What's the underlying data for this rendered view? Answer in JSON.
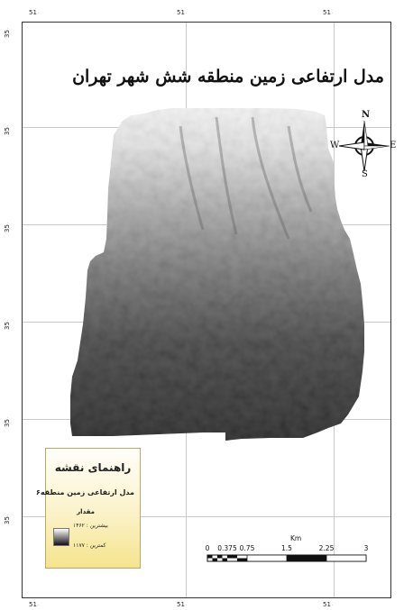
{
  "map": {
    "title": "مدل ارتفاعی زمین منطقه شش شهر تهران",
    "longitude_ticks": [
      "51",
      "51",
      "51"
    ],
    "latitude_ticks": [
      "35",
      "35",
      "35",
      "35",
      "35",
      "35"
    ],
    "tick_suffix": "°",
    "north_arrow": {
      "n": "N",
      "s": "S",
      "e": "E",
      "w": "W"
    },
    "colors": {
      "dem_high": "#ffffff",
      "dem_low": "#111111",
      "legend_bg": "#f5e48d"
    }
  },
  "legend": {
    "title": "راهنمای نقشه",
    "layer_name": "مدل ارتفاعی زمین منطقه۶",
    "value_label": "مقدار",
    "high_label": "بیشترین : ۱۴۶۲",
    "low_label": "کمترین : ۱۱۷۷"
  },
  "scalebar": {
    "unit": "Km",
    "labels": [
      "0",
      "0.375",
      "0.75",
      "1.5",
      "2.25",
      "3"
    ]
  }
}
